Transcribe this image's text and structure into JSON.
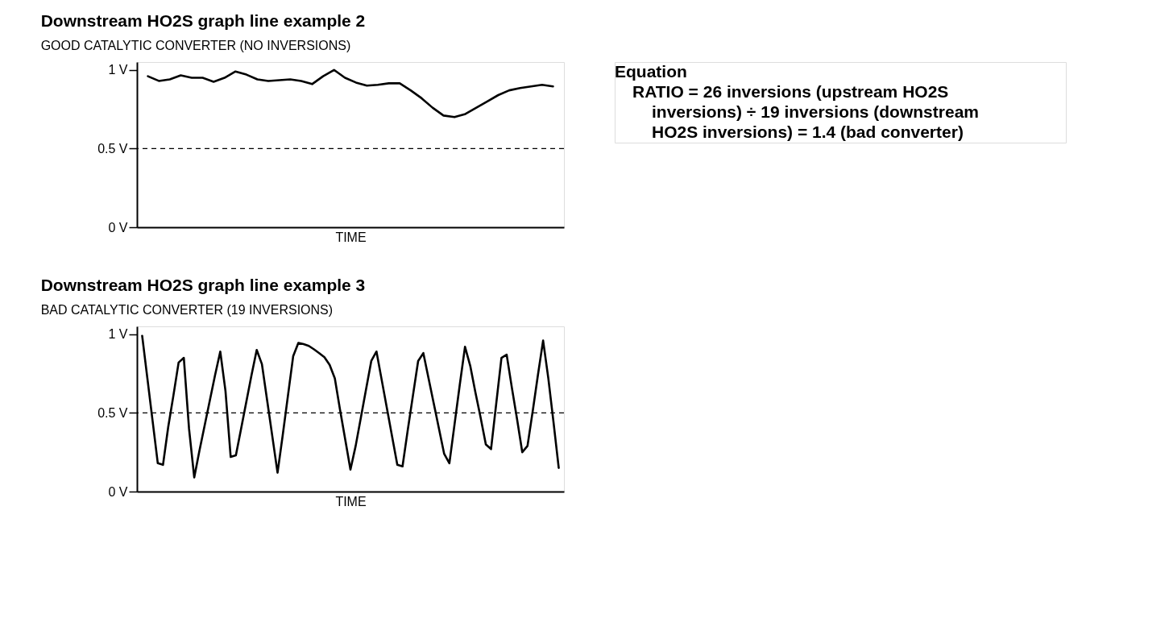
{
  "chart_data": [
    {
      "type": "line",
      "title": "Downstream HO2S graph line example 2",
      "subtitle": "GOOD CATALYTIC CONVERTER (NO INVERSIONS)",
      "xlabel": "TIME",
      "categories": [
        null,
        null,
        null,
        null,
        null,
        null,
        null,
        null,
        null,
        null,
        null,
        null,
        null,
        null,
        null,
        null,
        null,
        null,
        null,
        null,
        null,
        null,
        null,
        null,
        null,
        null,
        null,
        null,
        null,
        null,
        null,
        null,
        null,
        null,
        null,
        null,
        null,
        null
      ],
      "series": [
        {
          "color": "#000000",
          "values": [
            0.96,
            0.93,
            0.94,
            0.965,
            0.95,
            0.95,
            0.925,
            0.95,
            0.99,
            0.97,
            0.94,
            0.93,
            0.935,
            0.94,
            0.93,
            0.91,
            0.96,
            1.0,
            0.95,
            0.92,
            0.9,
            0.905,
            0.915,
            0.915,
            0.87,
            0.82,
            0.76,
            0.71,
            0.7,
            0.72,
            0.76,
            0.8,
            0.84,
            0.87,
            0.885,
            0.895,
            0.905,
            0.895
          ]
        }
      ],
      "ylim": [
        0,
        1.05
      ],
      "yticks": [
        {
          "value": 0,
          "label": "0 V"
        },
        {
          "value": 0.5,
          "label": "0.5 V"
        },
        {
          "value": 1,
          "label": "1 V"
        }
      ],
      "ref_lines": [
        {
          "axis": "y",
          "value": 0.5,
          "label": null,
          "color": "#000000",
          "line_style": "dashed"
        }
      ],
      "grid": false,
      "legend": false,
      "marker": "none",
      "line_style": "solid",
      "tick_labels": "y",
      "annotations": [
        "Equation",
        "RATIO = 26 inversions (upstream HO2S",
        "inversions) ÷ 19 inversions (downstream",
        "HO2S inversions) = 1.4 (bad converter)"
      ]
    },
    {
      "type": "line",
      "title": "Downstream HO2S graph line example 3",
      "subtitle": "BAD CATALYTIC CONVERTER (19 INVERSIONS)",
      "xlabel": "TIME",
      "categories": [
        null,
        null,
        null,
        null,
        null,
        null,
        null,
        null,
        null,
        null,
        null,
        null,
        null,
        null,
        null,
        null,
        null,
        null,
        null,
        null,
        null,
        null,
        null,
        null,
        null,
        null,
        null,
        null,
        null,
        null,
        null,
        null,
        null,
        null,
        null,
        null,
        null,
        null,
        null,
        null,
        null,
        null,
        null,
        null,
        null,
        null,
        null,
        null,
        null,
        null,
        null,
        null,
        null,
        null,
        null,
        null,
        null,
        null,
        null,
        null,
        null,
        null,
        null,
        null,
        null,
        null,
        null,
        null,
        null,
        null,
        null,
        null,
        null,
        null,
        null,
        null,
        null,
        null,
        null,
        null,
        null
      ],
      "series": [
        {
          "color": "#000000",
          "values": [
            0.99,
            0.72,
            0.45,
            0.18,
            0.17,
            0.41,
            0.61,
            0.82,
            0.85,
            0.4,
            0.09,
            0.26,
            0.42,
            0.58,
            0.74,
            0.89,
            0.64,
            0.22,
            0.23,
            0.4,
            0.57,
            0.74,
            0.9,
            0.81,
            0.58,
            0.35,
            0.12,
            0.36,
            0.61,
            0.86,
            0.945,
            0.937,
            0.926,
            0.904,
            0.88,
            0.854,
            0.805,
            0.72,
            0.52,
            0.33,
            0.14,
            0.29,
            0.47,
            0.65,
            0.83,
            0.89,
            0.71,
            0.53,
            0.35,
            0.17,
            0.16,
            0.39,
            0.61,
            0.83,
            0.88,
            0.72,
            0.56,
            0.4,
            0.24,
            0.18,
            0.43,
            0.68,
            0.92,
            0.8,
            0.63,
            0.47,
            0.3,
            0.27,
            0.56,
            0.85,
            0.87,
            0.66,
            0.46,
            0.25,
            0.29,
            0.51,
            0.74,
            0.96,
            0.72,
            0.44,
            0.15
          ]
        }
      ],
      "ylim": [
        0,
        1.05
      ],
      "yticks": [
        {
          "value": 0,
          "label": "0 V"
        },
        {
          "value": 0.5,
          "label": "0.5 V"
        },
        {
          "value": 1,
          "label": "1 V"
        }
      ],
      "ref_lines": [
        {
          "axis": "y",
          "value": 0.5,
          "label": null,
          "color": "#000000",
          "line_style": "dashed"
        }
      ],
      "grid": false,
      "legend": false,
      "marker": "none",
      "line_style": "solid",
      "tick_labels": "y"
    }
  ]
}
